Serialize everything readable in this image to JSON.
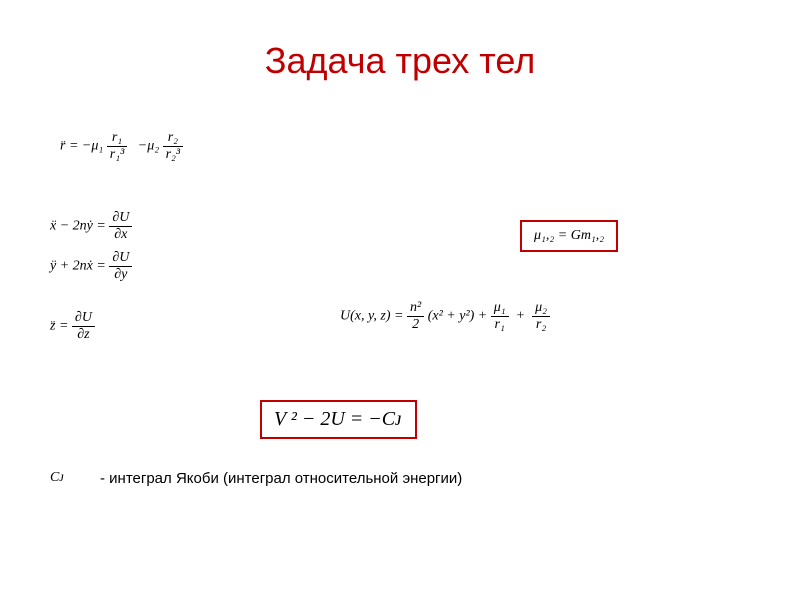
{
  "title": "Задача трех тел",
  "colors": {
    "accent": "#c00000",
    "text": "#000000",
    "bg": "#ffffff"
  },
  "equations": {
    "vec_r": {
      "lhs": "r̈ =",
      "term1_top": "r₁",
      "term1_bot": "r₁³",
      "mu1": "−μ₁",
      "mu2": "−μ₂",
      "term2_top": "r₂",
      "term2_bot": "r₂³"
    },
    "rot1": "ẍ − 2nẏ =",
    "rot1_rhs_top": "∂U",
    "rot1_rhs_bot": "∂x",
    "rot2": "ÿ + 2nẋ =",
    "rot2_rhs_top": "∂U",
    "rot2_rhs_bot": "∂y",
    "rot3": "z̈ =",
    "rot3_rhs_top": "∂U",
    "rot3_rhs_bot": "∂z",
    "mu_def": "μ₁,₂ = Gm₁,₂",
    "U_lhs": "U(x, y, z) =",
    "U_t1_top": "n²",
    "U_t1_bot": "2",
    "U_t1_tail": "(x² + y²) +",
    "U_t2_top": "μ₁",
    "U_t2_bot": "r₁",
    "U_plus": "+",
    "U_t3_top": "μ₂",
    "U_t3_bot": "r₂",
    "jacobi": "V ² − 2U = −Cᴊ",
    "cj_sym": "Cᴊ",
    "cj_label": "- интеграл Якоби (интеграл относительной энергии)"
  }
}
